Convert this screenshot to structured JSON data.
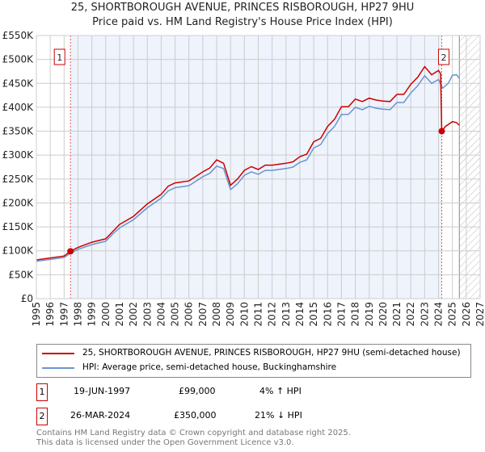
{
  "title_line1": "25, SHORTBOROUGH AVENUE, PRINCES RISBOROUGH, HP27 9HU",
  "title_line2": "Price paid vs. HM Land Registry's House Price Index (HPI)",
  "colors": {
    "property": "#cc0000",
    "hpi": "#6a95d0",
    "shade": "#eef3fc"
  },
  "chart_data": {
    "type": "line",
    "xlim": [
      1995,
      2027
    ],
    "ylim": [
      0,
      550000
    ],
    "yticks": [
      {
        "v": 0,
        "l": "£0"
      },
      {
        "v": 50000,
        "l": "£50K"
      },
      {
        "v": 100000,
        "l": "£100K"
      },
      {
        "v": 150000,
        "l": "£150K"
      },
      {
        "v": 200000,
        "l": "£200K"
      },
      {
        "v": 250000,
        "l": "£250K"
      },
      {
        "v": 300000,
        "l": "£300K"
      },
      {
        "v": 350000,
        "l": "£350K"
      },
      {
        "v": 400000,
        "l": "£400K"
      },
      {
        "v": 450000,
        "l": "£450K"
      },
      {
        "v": 500000,
        "l": "£500K"
      },
      {
        "v": 550000,
        "l": "£550K"
      }
    ],
    "xticks": [
      "1995",
      "1996",
      "1997",
      "1998",
      "1999",
      "2000",
      "2001",
      "2002",
      "2003",
      "2004",
      "2005",
      "2006",
      "2007",
      "2008",
      "2009",
      "2010",
      "2011",
      "2012",
      "2013",
      "2014",
      "2015",
      "2016",
      "2017",
      "2018",
      "2019",
      "2020",
      "2021",
      "2022",
      "2023",
      "2024",
      "2025",
      "2026",
      "2027"
    ],
    "shaded_ownership": [
      1997.46,
      2024.23
    ],
    "forecast_hatch_from": 2025.5,
    "series": [
      {
        "name": "25, SHORTBOROUGH AVENUE, PRINCES RISBOROUGH, HP27 9HU (semi-detached house)",
        "color": "#cc0000",
        "x": [
          1995,
          1996,
          1997,
          1997.46,
          1998,
          1999,
          2000,
          2000.5,
          2001,
          2002,
          2003,
          2003.5,
          2004,
          2004.5,
          2005,
          2006,
          2007,
          2007.5,
          2008,
          2008.5,
          2009,
          2009.5,
          2010,
          2010.5,
          2011,
          2011.5,
          2012,
          2013,
          2013.5,
          2014,
          2014.5,
          2015,
          2015.5,
          2016,
          2016.5,
          2017,
          2017.5,
          2018,
          2018.5,
          2019,
          2019.5,
          2020,
          2020.5,
          2021,
          2021.5,
          2022,
          2022.5,
          2023,
          2023.5,
          2024,
          2024.15,
          2024.23,
          2024.5,
          2025,
          2025.3,
          2025.5
        ],
        "y": [
          81000,
          85000,
          89000,
          99000,
          107000,
          118000,
          125000,
          140000,
          155000,
          172000,
          198000,
          208000,
          218000,
          235000,
          242000,
          246000,
          265000,
          273000,
          290000,
          283000,
          237000,
          250000,
          268000,
          276000,
          270000,
          279000,
          279000,
          283000,
          286000,
          297000,
          302000,
          328000,
          335000,
          360000,
          375000,
          401000,
          401000,
          417000,
          412000,
          419000,
          415000,
          413000,
          412000,
          427000,
          427000,
          448000,
          463000,
          485000,
          468000,
          477000,
          470000,
          350000,
          360000,
          370000,
          368000,
          362000
        ]
      },
      {
        "name": "HPI: Average price, semi-detached house, Buckinghamshire",
        "color": "#6a95d0",
        "x": [
          1995,
          1996,
          1997,
          1997.46,
          1998,
          1999,
          2000,
          2000.5,
          2001,
          2002,
          2003,
          2003.5,
          2004,
          2004.5,
          2005,
          2006,
          2007,
          2007.5,
          2008,
          2008.5,
          2009,
          2009.5,
          2010,
          2010.5,
          2011,
          2011.5,
          2012,
          2013,
          2013.5,
          2014,
          2014.5,
          2015,
          2015.5,
          2016,
          2016.5,
          2017,
          2017.5,
          2018,
          2018.5,
          2019,
          2019.5,
          2020,
          2020.5,
          2021,
          2021.5,
          2022,
          2022.5,
          2023,
          2023.5,
          2024,
          2024.3,
          2024.7,
          2025,
          2025.3,
          2025.5
        ],
        "y": [
          78000,
          82000,
          86000,
          95000,
          103000,
          113000,
          120000,
          135000,
          148000,
          165000,
          190000,
          200000,
          210000,
          225000,
          232000,
          236000,
          255000,
          262000,
          277000,
          272000,
          228000,
          240000,
          258000,
          265000,
          260000,
          268000,
          268000,
          272000,
          275000,
          285000,
          290000,
          315000,
          322000,
          345000,
          360000,
          385000,
          385000,
          400000,
          395000,
          402000,
          398000,
          396000,
          395000,
          410000,
          410000,
          430000,
          445000,
          466000,
          450000,
          458000,
          440000,
          450000,
          467000,
          468000,
          460000
        ]
      }
    ],
    "transactions": [
      {
        "id": "1",
        "x": 1997.46,
        "y": 99000
      },
      {
        "id": "2",
        "x": 2024.23,
        "y": 350000
      }
    ]
  },
  "legend": {
    "property": "25, SHORTBOROUGH AVENUE, PRINCES RISBOROUGH, HP27 9HU (semi-detached house)",
    "hpi": "HPI: Average price, semi-detached house, Buckinghamshire"
  },
  "table": [
    {
      "id": "1",
      "date": "19-JUN-1997",
      "price": "£99,000",
      "hpi": "4% ↑ HPI"
    },
    {
      "id": "2",
      "date": "26-MAR-2024",
      "price": "£350,000",
      "hpi": "21% ↓ HPI"
    }
  ],
  "footer": {
    "line1": "Contains HM Land Registry data © Crown copyright and database right 2025.",
    "line2": "This data is licensed under the Open Government Licence v3.0."
  }
}
